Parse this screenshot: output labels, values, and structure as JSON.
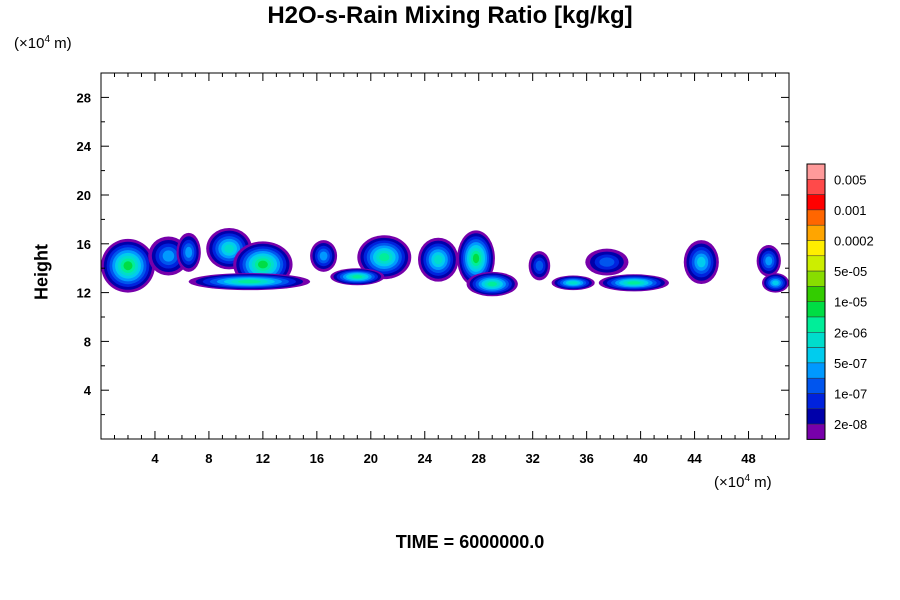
{
  "chart_data": {
    "type": "heatmap",
    "title": "H2O-s-Rain Mixing Ratio [kg/kg]",
    "ylabel": "Height",
    "x_unit": "10^4 m",
    "y_unit": "10^4 m",
    "x_unit_prefix": "(×10",
    "x_unit_exp": "4",
    "x_unit_suffix": " m)",
    "y_unit_prefix": "(×10",
    "y_unit_exp": "4",
    "y_unit_suffix": " m)",
    "footer": "TIME = 6000000.0",
    "xlim": [
      0,
      51
    ],
    "ylim": [
      0,
      30
    ],
    "x_ticks": [
      4,
      8,
      12,
      16,
      20,
      24,
      28,
      32,
      36,
      40,
      44,
      48
    ],
    "y_ticks": [
      4,
      8,
      12,
      16,
      20,
      24,
      28
    ],
    "legend": {
      "labels": [
        "0.005",
        "0.001",
        "0.0002",
        "5e-05",
        "1e-05",
        "2e-06",
        "5e-07",
        "1e-07",
        "2e-08"
      ],
      "colors": [
        "#ff9a9a",
        "#ff4a4a",
        "#ff0000",
        "#ff6600",
        "#ffa500",
        "#ffee00",
        "#ccee00",
        "#88dd00",
        "#33cc00",
        "#00dd44",
        "#00ee99",
        "#00ddcc",
        "#00ccee",
        "#0099ff",
        "#0055ee",
        "#0022dd",
        "#0000aa",
        "#7700aa"
      ]
    },
    "cells": [
      {
        "x": 2,
        "y": 14.2,
        "rx": 2.0,
        "ry": 2.2,
        "level": 8
      },
      {
        "x": 5,
        "y": 15.0,
        "rx": 1.5,
        "ry": 1.6,
        "level": 4
      },
      {
        "x": 6.5,
        "y": 15.3,
        "rx": 0.9,
        "ry": 1.6,
        "level": 4
      },
      {
        "x": 9.5,
        "y": 15.6,
        "rx": 1.7,
        "ry": 1.7,
        "level": 6
      },
      {
        "x": 12,
        "y": 14.3,
        "rx": 2.2,
        "ry": 1.9,
        "level": 8
      },
      {
        "x": 16.5,
        "y": 15.0,
        "rx": 1.0,
        "ry": 1.3,
        "level": 4
      },
      {
        "x": 21,
        "y": 14.9,
        "rx": 2.0,
        "ry": 1.8,
        "level": 7
      },
      {
        "x": 25,
        "y": 14.7,
        "rx": 1.5,
        "ry": 1.8,
        "level": 6
      },
      {
        "x": 27.8,
        "y": 14.8,
        "rx": 1.4,
        "ry": 2.3,
        "level": 8
      },
      {
        "x": 32.5,
        "y": 14.2,
        "rx": 0.8,
        "ry": 1.2,
        "level": 3
      },
      {
        "x": 37.5,
        "y": 14.5,
        "rx": 1.6,
        "ry": 1.1,
        "level": 3
      },
      {
        "x": 44.5,
        "y": 14.5,
        "rx": 1.3,
        "ry": 1.8,
        "level": 5
      },
      {
        "x": 49.5,
        "y": 14.6,
        "rx": 0.9,
        "ry": 1.3,
        "level": 4
      },
      {
        "x": 11,
        "y": 12.9,
        "rx": 4.5,
        "ry": 0.7,
        "level": 7
      },
      {
        "x": 19,
        "y": 13.3,
        "rx": 2.0,
        "ry": 0.7,
        "level": 7
      },
      {
        "x": 29,
        "y": 12.7,
        "rx": 1.9,
        "ry": 1.0,
        "level": 7
      },
      {
        "x": 35,
        "y": 12.8,
        "rx": 1.6,
        "ry": 0.6,
        "level": 6
      },
      {
        "x": 39.5,
        "y": 12.8,
        "rx": 2.6,
        "ry": 0.7,
        "level": 7
      },
      {
        "x": 50,
        "y": 12.8,
        "rx": 1.0,
        "ry": 0.8,
        "level": 5
      }
    ]
  }
}
